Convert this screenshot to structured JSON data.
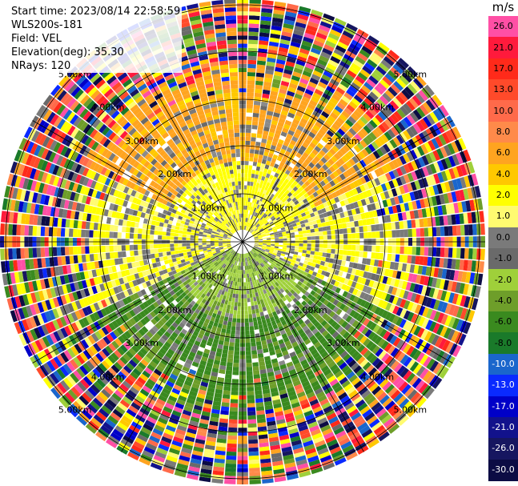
{
  "info": {
    "start_time": "Start time: 2023/08/14 22:58:59",
    "instrument": "WLS200s-181",
    "field": "Field: VEL",
    "elevation": "Elevation(deg): 35.30",
    "nrays": "NRays: 120"
  },
  "rings": [
    "1.00km",
    "2.00km",
    "3.00km",
    "4.00km",
    "5.00km"
  ],
  "colorbar": {
    "unit": "m/s",
    "ticks": [
      "26.0",
      "21.0",
      "17.0",
      "13.0",
      "10.0",
      "8.0",
      "6.0",
      "4.0",
      "2.0",
      "1.0",
      "0.0",
      "-1.0",
      "-2.0",
      "-4.0",
      "-6.0",
      "-8.0",
      "-10.0",
      "-13.0",
      "-17.0",
      "-21.0",
      "-26.0",
      "-30.0"
    ],
    "colors": [
      "#ff4fa5",
      "#ff1a3c",
      "#ff2a1a",
      "#ff4a2a",
      "#ff6a4a",
      "#ff8a4a",
      "#ffa420",
      "#ffc800",
      "#ffff00",
      "#fffb70",
      "#7a7a7a",
      "#6a6a6a",
      "#9fd03a",
      "#6e9e2a",
      "#3a8a1f",
      "#1a7a2a",
      "#1a66cc",
      "#0a2aff",
      "#0000c8",
      "#12128c",
      "#161660",
      "#0c0c44"
    ]
  }
}
